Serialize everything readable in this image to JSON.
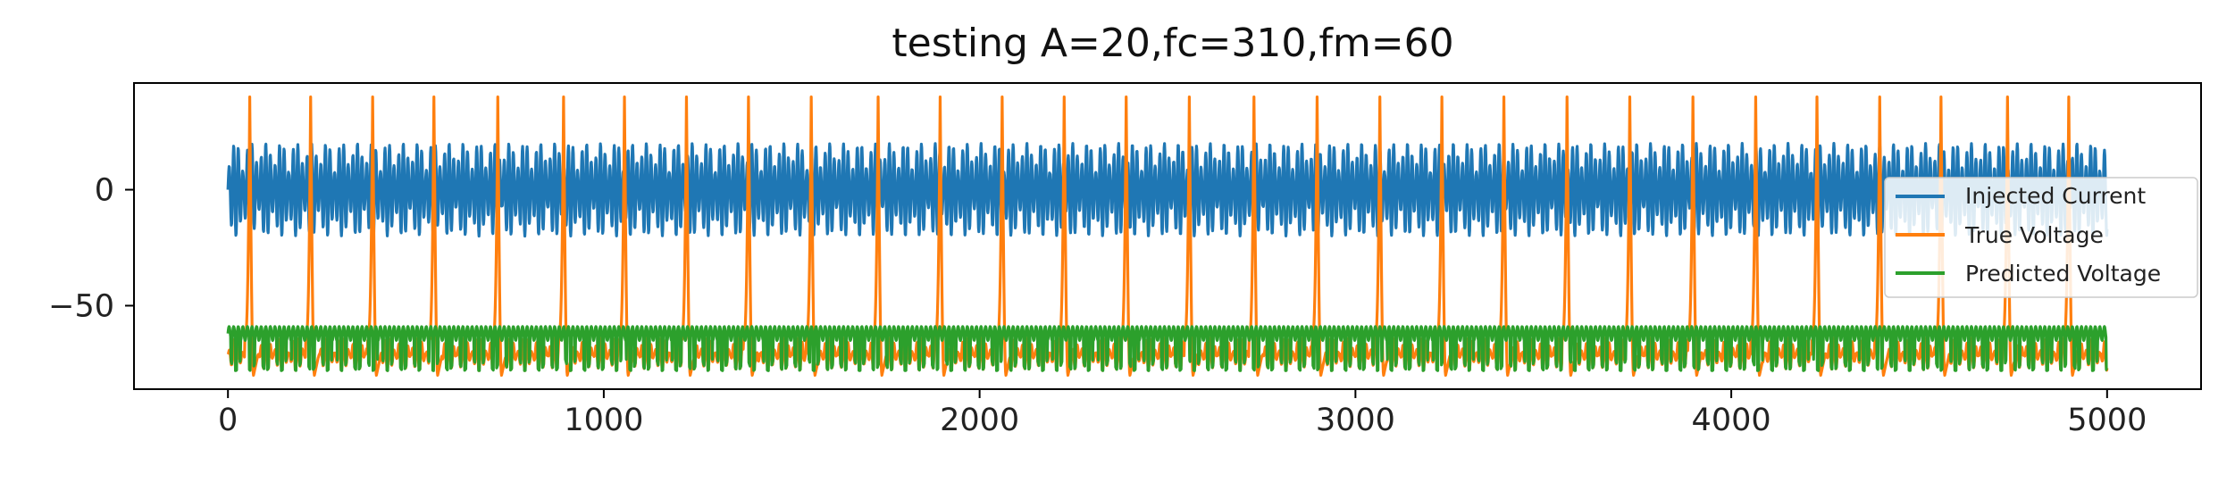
{
  "chart_data": {
    "type": "line",
    "title": "testing A=20,fc=310,fm=60",
    "xlabel": "",
    "ylabel": "",
    "xlim": [
      -250,
      5250
    ],
    "ylim": [
      -86,
      46
    ],
    "x_ticks": [
      0,
      1000,
      2000,
      3000,
      4000,
      5000
    ],
    "x_tick_labels": [
      "0",
      "1000",
      "2000",
      "3000",
      "4000",
      "5000"
    ],
    "y_ticks": [
      0,
      -50
    ],
    "y_tick_labels": [
      "0",
      "−50"
    ],
    "grid": false,
    "legend_position": "right",
    "x_range": [
      0,
      5000
    ],
    "spike_times": [
      58,
      220,
      385,
      548,
      718,
      893,
      1055,
      1220,
      1385,
      1552,
      1730,
      1895,
      2060,
      2225,
      2390,
      2558,
      2730,
      2898,
      3065,
      3230,
      3395,
      3563,
      3730,
      3898,
      4065,
      4228,
      4395,
      4558,
      4735,
      4898
    ],
    "series": [
      {
        "name": "Injected Current",
        "color": "#1f77b4",
        "model": "am_sine",
        "amplitude": 20,
        "carrier_period": 12.2,
        "modulation_period": 81.0,
        "baseline": 0
      },
      {
        "name": "True Voltage",
        "color": "#ff7f0e",
        "model": "spiking",
        "rest": -65,
        "peak": 40,
        "trough": -80,
        "ripple_min": -77,
        "ripple_max": -60
      },
      {
        "name": "Predicted Voltage",
        "color": "#2ca02c",
        "model": "ripple",
        "upper": -58,
        "lower": -78,
        "typical": -62
      }
    ]
  }
}
